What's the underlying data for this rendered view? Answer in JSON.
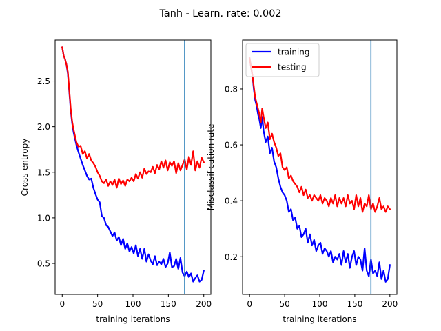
{
  "figure": {
    "title": "Tanh - Learn. rate: 0.002"
  },
  "chart_data": [
    {
      "type": "line",
      "xlabel": "training iterations",
      "ylabel": "Cross-entropy",
      "xlim": [
        -10,
        210
      ],
      "ylim": [
        0.16,
        2.95
      ],
      "xticks": [
        0,
        50,
        100,
        150,
        200
      ],
      "yticks": [
        0.5,
        1.0,
        1.5,
        2.0,
        2.5
      ],
      "xtick_labels": [
        "0",
        "50",
        "100",
        "150",
        "200"
      ],
      "ytick_labels": [
        "0.5",
        "1.0",
        "1.5",
        "2.0",
        "2.5"
      ],
      "vline": {
        "x": 173,
        "color": "#1f77b4"
      },
      "grid": false,
      "series": [
        {
          "color": "#0000ff",
          "x": [
            0,
            2,
            4,
            6,
            8,
            10,
            12,
            14,
            16,
            18,
            20,
            23,
            26,
            29,
            32,
            35,
            38,
            41,
            44,
            47,
            50,
            53,
            56,
            59,
            62,
            65,
            68,
            71,
            74,
            77,
            80,
            83,
            86,
            89,
            92,
            95,
            98,
            101,
            104,
            107,
            110,
            113,
            116,
            119,
            122,
            125,
            128,
            131,
            134,
            137,
            140,
            143,
            146,
            149,
            152,
            155,
            158,
            161,
            164,
            167,
            170,
            173,
            176,
            179,
            182,
            185,
            188,
            191,
            194,
            197,
            200
          ],
          "values": [
            2.87,
            2.78,
            2.74,
            2.68,
            2.58,
            2.38,
            2.18,
            2.04,
            1.94,
            1.87,
            1.8,
            1.72,
            1.65,
            1.58,
            1.52,
            1.46,
            1.42,
            1.43,
            1.33,
            1.26,
            1.2,
            1.17,
            1.02,
            1.0,
            0.92,
            0.9,
            0.85,
            0.8,
            0.84,
            0.75,
            0.79,
            0.7,
            0.77,
            0.66,
            0.72,
            0.63,
            0.68,
            0.61,
            0.7,
            0.58,
            0.66,
            0.55,
            0.66,
            0.52,
            0.6,
            0.53,
            0.49,
            0.58,
            0.48,
            0.52,
            0.49,
            0.55,
            0.46,
            0.5,
            0.62,
            0.46,
            0.47,
            0.55,
            0.44,
            0.56,
            0.4,
            0.36,
            0.41,
            0.35,
            0.39,
            0.3,
            0.34,
            0.37,
            0.3,
            0.32,
            0.42
          ]
        },
        {
          "color": "#ff0000",
          "x": [
            0,
            2,
            4,
            6,
            8,
            10,
            12,
            14,
            16,
            18,
            20,
            23,
            26,
            29,
            32,
            35,
            38,
            41,
            44,
            47,
            50,
            53,
            56,
            59,
            62,
            65,
            68,
            71,
            74,
            77,
            80,
            83,
            86,
            89,
            92,
            95,
            98,
            101,
            104,
            107,
            110,
            113,
            116,
            119,
            122,
            125,
            128,
            131,
            134,
            137,
            140,
            143,
            146,
            149,
            152,
            155,
            158,
            161,
            164,
            167,
            170,
            173,
            176,
            179,
            182,
            185,
            188,
            191,
            194,
            197,
            200
          ],
          "values": [
            2.87,
            2.78,
            2.74,
            2.68,
            2.6,
            2.4,
            2.2,
            2.06,
            1.97,
            1.9,
            1.83,
            1.78,
            1.79,
            1.7,
            1.73,
            1.65,
            1.7,
            1.63,
            1.6,
            1.56,
            1.5,
            1.46,
            1.4,
            1.38,
            1.42,
            1.35,
            1.4,
            1.36,
            1.42,
            1.33,
            1.43,
            1.37,
            1.41,
            1.35,
            1.42,
            1.4,
            1.44,
            1.4,
            1.48,
            1.43,
            1.5,
            1.44,
            1.54,
            1.48,
            1.51,
            1.5,
            1.56,
            1.49,
            1.58,
            1.53,
            1.62,
            1.55,
            1.63,
            1.52,
            1.61,
            1.57,
            1.62,
            1.49,
            1.6,
            1.52,
            1.58,
            1.64,
            1.53,
            1.67,
            1.58,
            1.73,
            1.52,
            1.62,
            1.55,
            1.66,
            1.61
          ]
        }
      ]
    },
    {
      "type": "line",
      "xlabel": "training iterations",
      "ylabel": "Misclassification rate",
      "xlim": [
        -10,
        210
      ],
      "ylim": [
        0.065,
        0.975
      ],
      "xticks": [
        0,
        50,
        100,
        150,
        200
      ],
      "yticks": [
        0.2,
        0.4,
        0.6,
        0.8
      ],
      "xtick_labels": [
        "0",
        "50",
        "100",
        "150",
        "200"
      ],
      "ytick_labels": [
        "0.2",
        "0.4",
        "0.6",
        "0.8"
      ],
      "vline": {
        "x": 173,
        "color": "#1f77b4"
      },
      "grid": false,
      "legend": {
        "position": "top-left",
        "entries": [
          "training",
          "testing"
        ]
      },
      "series": [
        {
          "name": "training",
          "color": "#0000ff",
          "x": [
            0,
            2,
            4,
            6,
            8,
            10,
            12,
            14,
            16,
            18,
            20,
            23,
            26,
            29,
            32,
            35,
            38,
            41,
            44,
            47,
            50,
            53,
            56,
            59,
            62,
            65,
            68,
            71,
            74,
            77,
            80,
            83,
            86,
            89,
            92,
            95,
            98,
            101,
            104,
            107,
            110,
            113,
            116,
            119,
            122,
            125,
            128,
            131,
            134,
            137,
            140,
            143,
            146,
            149,
            152,
            155,
            158,
            161,
            164,
            167,
            170,
            173,
            176,
            179,
            182,
            185,
            188,
            191,
            194,
            197,
            200
          ],
          "values": [
            0.91,
            0.88,
            0.85,
            0.8,
            0.76,
            0.74,
            0.71,
            0.69,
            0.66,
            0.7,
            0.65,
            0.61,
            0.63,
            0.57,
            0.59,
            0.54,
            0.52,
            0.48,
            0.45,
            0.43,
            0.42,
            0.4,
            0.36,
            0.37,
            0.33,
            0.34,
            0.3,
            0.31,
            0.27,
            0.28,
            0.3,
            0.25,
            0.28,
            0.24,
            0.26,
            0.22,
            0.24,
            0.25,
            0.21,
            0.23,
            0.22,
            0.2,
            0.22,
            0.18,
            0.2,
            0.19,
            0.21,
            0.17,
            0.22,
            0.18,
            0.21,
            0.16,
            0.2,
            0.22,
            0.17,
            0.2,
            0.19,
            0.15,
            0.23,
            0.15,
            0.13,
            0.19,
            0.14,
            0.15,
            0.13,
            0.18,
            0.12,
            0.15,
            0.11,
            0.12,
            0.17
          ]
        },
        {
          "name": "testing",
          "color": "#ff0000",
          "x": [
            0,
            2,
            4,
            6,
            8,
            10,
            12,
            14,
            16,
            18,
            20,
            23,
            26,
            29,
            32,
            35,
            38,
            41,
            44,
            47,
            50,
            53,
            56,
            59,
            62,
            65,
            68,
            71,
            74,
            77,
            80,
            83,
            86,
            89,
            92,
            95,
            98,
            101,
            104,
            107,
            110,
            113,
            116,
            119,
            122,
            125,
            128,
            131,
            134,
            137,
            140,
            143,
            146,
            149,
            152,
            155,
            158,
            161,
            164,
            167,
            170,
            173,
            176,
            179,
            182,
            185,
            188,
            191,
            194,
            197,
            200
          ],
          "values": [
            0.91,
            0.88,
            0.85,
            0.81,
            0.77,
            0.75,
            0.73,
            0.71,
            0.68,
            0.73,
            0.7,
            0.66,
            0.68,
            0.62,
            0.64,
            0.61,
            0.59,
            0.56,
            0.57,
            0.52,
            0.51,
            0.52,
            0.48,
            0.49,
            0.47,
            0.46,
            0.45,
            0.43,
            0.45,
            0.42,
            0.44,
            0.41,
            0.42,
            0.4,
            0.42,
            0.41,
            0.4,
            0.42,
            0.39,
            0.41,
            0.4,
            0.38,
            0.41,
            0.39,
            0.42,
            0.38,
            0.41,
            0.39,
            0.41,
            0.38,
            0.42,
            0.39,
            0.4,
            0.37,
            0.42,
            0.38,
            0.41,
            0.36,
            0.39,
            0.38,
            0.42,
            0.37,
            0.39,
            0.36,
            0.38,
            0.41,
            0.37,
            0.38,
            0.36,
            0.38,
            0.37
          ]
        }
      ]
    }
  ]
}
